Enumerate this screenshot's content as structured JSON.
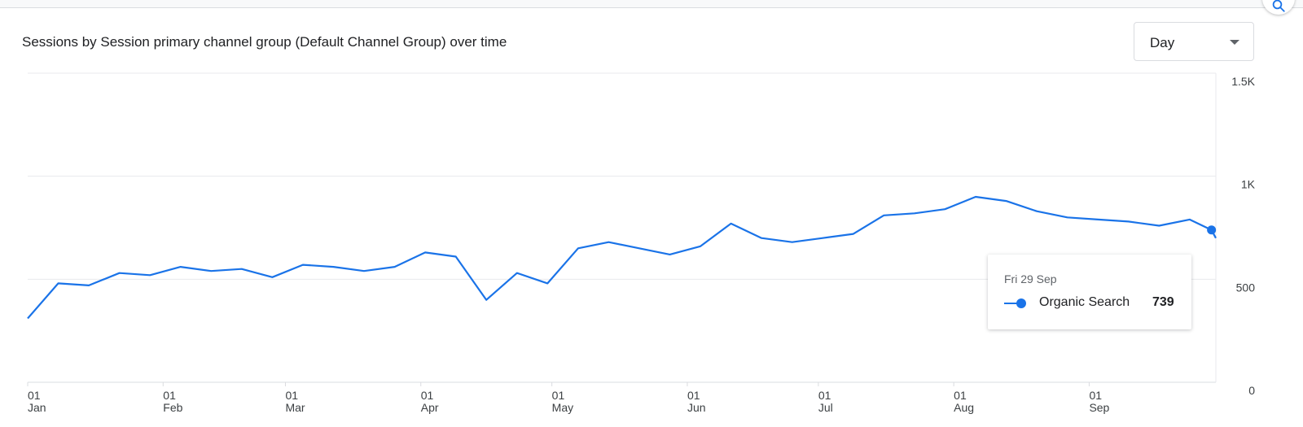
{
  "header": {
    "title": "Sessions by Session primary channel group (Default Channel Group) over time"
  },
  "controls": {
    "granularity": "Day",
    "search_icon": "search-icon"
  },
  "tooltip": {
    "date": "Fri 29 Sep",
    "series_name": "Organic Search",
    "value": "739"
  },
  "colors": {
    "series": "#1a73e8",
    "grid": "#e8eaed"
  },
  "chart_data": {
    "type": "line",
    "title": "Sessions by Session primary channel group (Default Channel Group) over time",
    "x_range": [
      "2023-01-01",
      "2023-09-30"
    ],
    "ylim": [
      0,
      1500
    ],
    "y_ticks": [
      {
        "value": 0,
        "label": "0"
      },
      {
        "value": 500,
        "label": "500"
      },
      {
        "value": 1000,
        "label": "1K"
      },
      {
        "value": 1500,
        "label": "1.5K"
      }
    ],
    "x_ticks": [
      {
        "day": "01",
        "month": "Jan"
      },
      {
        "day": "01",
        "month": "Feb"
      },
      {
        "day": "01",
        "month": "Mar"
      },
      {
        "day": "01",
        "month": "Apr"
      },
      {
        "day": "01",
        "month": "May"
      },
      {
        "day": "01",
        "month": "Jun"
      },
      {
        "day": "01",
        "month": "Jul"
      },
      {
        "day": "01",
        "month": "Aug"
      },
      {
        "day": "01",
        "month": "Sep"
      }
    ],
    "grid": true,
    "series": [
      {
        "name": "Organic Search",
        "highlight": {
          "date": "2023-09-29",
          "value": 739
        },
        "points": [
          [
            "2023-01-01",
            310
          ],
          [
            "2023-01-08",
            480
          ],
          [
            "2023-01-15",
            470
          ],
          [
            "2023-01-22",
            530
          ],
          [
            "2023-01-29",
            520
          ],
          [
            "2023-02-05",
            560
          ],
          [
            "2023-02-12",
            540
          ],
          [
            "2023-02-19",
            550
          ],
          [
            "2023-02-26",
            510
          ],
          [
            "2023-03-05",
            570
          ],
          [
            "2023-03-12",
            560
          ],
          [
            "2023-03-19",
            540
          ],
          [
            "2023-03-26",
            560
          ],
          [
            "2023-04-02",
            630
          ],
          [
            "2023-04-09",
            610
          ],
          [
            "2023-04-16",
            400
          ],
          [
            "2023-04-23",
            530
          ],
          [
            "2023-04-30",
            480
          ],
          [
            "2023-05-07",
            650
          ],
          [
            "2023-05-14",
            680
          ],
          [
            "2023-05-21",
            650
          ],
          [
            "2023-05-28",
            620
          ],
          [
            "2023-06-04",
            660
          ],
          [
            "2023-06-11",
            770
          ],
          [
            "2023-06-18",
            700
          ],
          [
            "2023-06-25",
            680
          ],
          [
            "2023-07-02",
            700
          ],
          [
            "2023-07-09",
            720
          ],
          [
            "2023-07-16",
            810
          ],
          [
            "2023-07-23",
            820
          ],
          [
            "2023-07-30",
            840
          ],
          [
            "2023-08-06",
            900
          ],
          [
            "2023-08-13",
            880
          ],
          [
            "2023-08-20",
            830
          ],
          [
            "2023-08-27",
            800
          ],
          [
            "2023-09-03",
            790
          ],
          [
            "2023-09-10",
            780
          ],
          [
            "2023-09-17",
            760
          ],
          [
            "2023-09-24",
            790
          ],
          [
            "2023-09-29",
            739
          ],
          [
            "2023-09-30",
            700
          ]
        ]
      }
    ]
  }
}
